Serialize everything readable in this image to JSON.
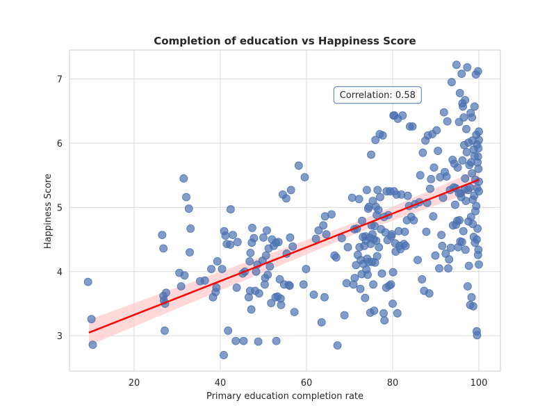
{
  "chart_data": {
    "type": "scatter",
    "title": "Completion of education vs Happiness Score",
    "xlabel": "Primary education completion rate",
    "ylabel": "Happiness Score",
    "xlim": [
      5,
      105
    ],
    "ylim": [
      2.45,
      7.45
    ],
    "xticks": [
      20,
      40,
      60,
      80,
      100
    ],
    "yticks": [
      3,
      4,
      5,
      6,
      7
    ],
    "grid": true,
    "annotation": {
      "text": "Correlation: 0.58",
      "x": 76.5,
      "y": 6.76
    },
    "regression": {
      "x": [
        9.5,
        100
      ],
      "y": [
        3.05,
        5.43
      ],
      "ci_halfwidth": [
        0.2,
        0.09,
        0.16
      ],
      "color": "#ff0000",
      "band_color": "#ffcccc"
    },
    "point_color": "#4c72b0",
    "points": [
      [
        9.3,
        3.84
      ],
      [
        10.1,
        3.26
      ],
      [
        10.4,
        2.86
      ],
      [
        26.5,
        4.57
      ],
      [
        26.8,
        4.36
      ],
      [
        26.8,
        3.62
      ],
      [
        26.9,
        3.55
      ],
      [
        27.1,
        3.08
      ],
      [
        27.2,
        3.5
      ],
      [
        27.4,
        3.67
      ],
      [
        30.5,
        3.98
      ],
      [
        30.9,
        3.77
      ],
      [
        31.5,
        5.45
      ],
      [
        31.7,
        3.94
      ],
      [
        32.1,
        5.16
      ],
      [
        32.7,
        4.98
      ],
      [
        32.9,
        4.3
      ],
      [
        33.1,
        4.67
      ],
      [
        35.3,
        3.85
      ],
      [
        36.4,
        3.86
      ],
      [
        37.9,
        4.04
      ],
      [
        38.3,
        3.6
      ],
      [
        38.9,
        3.68
      ],
      [
        39.1,
        3.75
      ],
      [
        39.3,
        4.16
      ],
      [
        40.4,
        4.04
      ],
      [
        40.8,
        2.7
      ],
      [
        40.9,
        4.63
      ],
      [
        41.2,
        4.56
      ],
      [
        41.5,
        4.43
      ],
      [
        41.8,
        3.08
      ],
      [
        42.3,
        4.42
      ],
      [
        42.4,
        4.97
      ],
      [
        42.9,
        4.57
      ],
      [
        43.6,
        2.92
      ],
      [
        43.8,
        3.75
      ],
      [
        44.0,
        4.46
      ],
      [
        45.2,
        3.97
      ],
      [
        45.4,
        2.92
      ],
      [
        45.7,
        4.0
      ],
      [
        46.6,
        3.6
      ],
      [
        46.8,
        4.16
      ],
      [
        46.9,
        3.7
      ],
      [
        47.0,
        4.29
      ],
      [
        47.2,
        3.41
      ],
      [
        47.3,
        4.45
      ],
      [
        47.4,
        4.68
      ],
      [
        47.8,
        4.52
      ],
      [
        48.1,
        3.7
      ],
      [
        48.3,
        4.0
      ],
      [
        48.6,
        4.11
      ],
      [
        48.8,
        2.91
      ],
      [
        49.0,
        3.66
      ],
      [
        49.8,
        4.17
      ],
      [
        50.0,
        4.53
      ],
      [
        50.3,
        3.8
      ],
      [
        50.4,
        3.9
      ],
      [
        50.6,
        4.25
      ],
      [
        50.8,
        4.64
      ],
      [
        51.0,
        3.95
      ],
      [
        51.2,
        4.36
      ],
      [
        51.5,
        4.08
      ],
      [
        51.8,
        3.51
      ],
      [
        52.0,
        4.5
      ],
      [
        52.4,
        4.4
      ],
      [
        52.8,
        3.6
      ],
      [
        52.9,
        4.45
      ],
      [
        53.0,
        2.92
      ],
      [
        53.3,
        3.61
      ],
      [
        53.5,
        4.46
      ],
      [
        53.8,
        3.88
      ],
      [
        54.0,
        3.58
      ],
      [
        54.1,
        3.48
      ],
      [
        54.5,
        5.2
      ],
      [
        54.8,
        3.8
      ],
      [
        55.3,
        5.14
      ],
      [
        55.4,
        4.28
      ],
      [
        55.9,
        3.79
      ],
      [
        56.1,
        3.78
      ],
      [
        56.2,
        4.53
      ],
      [
        56.4,
        5.27
      ],
      [
        56.8,
        4.39
      ],
      [
        57.2,
        3.37
      ],
      [
        58.2,
        5.65
      ],
      [
        59.3,
        3.8
      ],
      [
        59.6,
        5.47
      ],
      [
        59.9,
        4.04
      ],
      [
        61.7,
        3.64
      ],
      [
        62.2,
        4.51
      ],
      [
        62.8,
        4.64
      ],
      [
        63.5,
        3.21
      ],
      [
        63.9,
        4.72
      ],
      [
        64.2,
        3.6
      ],
      [
        64.3,
        4.86
      ],
      [
        64.6,
        4.58
      ],
      [
        65.8,
        4.89
      ],
      [
        66.5,
        4.25
      ],
      [
        66.9,
        4.22
      ],
      [
        67.2,
        2.85
      ],
      [
        68.2,
        4.52
      ],
      [
        68.8,
        3.32
      ],
      [
        69.3,
        3.82
      ],
      [
        69.6,
        4.38
      ],
      [
        70.6,
        5.15
      ],
      [
        70.9,
        3.8
      ],
      [
        71.1,
        4.66
      ],
      [
        71.2,
        3.9
      ],
      [
        71.5,
        4.1
      ],
      [
        71.7,
        4.67
      ],
      [
        71.9,
        4.26
      ],
      [
        72.2,
        5.13
      ],
      [
        72.3,
        4.38
      ],
      [
        72.5,
        3.73
      ],
      [
        72.6,
        4.18
      ],
      [
        72.8,
        3.96
      ],
      [
        72.9,
        4.79
      ],
      [
        73.1,
        4.54
      ],
      [
        73.2,
        4.12
      ],
      [
        73.4,
        4.4
      ],
      [
        73.6,
        3.59
      ],
      [
        73.7,
        4.55
      ],
      [
        73.8,
        4.48
      ],
      [
        73.9,
        4.03
      ],
      [
        74.0,
        5.27
      ],
      [
        74.1,
        4.2
      ],
      [
        74.2,
        3.95
      ],
      [
        74.3,
        4.98
      ],
      [
        74.4,
        4.15
      ],
      [
        74.5,
        5.01
      ],
      [
        74.7,
        4.53
      ],
      [
        74.8,
        3.36
      ],
      [
        74.9,
        4.43
      ],
      [
        75.0,
        5.82
      ],
      [
        75.1,
        4.72
      ],
      [
        75.2,
        4.15
      ],
      [
        75.3,
        4.58
      ],
      [
        75.4,
        5.1
      ],
      [
        75.5,
        3.8
      ],
      [
        75.6,
        4.5
      ],
      [
        75.7,
        3.39
      ],
      [
        75.8,
        4.71
      ],
      [
        75.9,
        4.14
      ],
      [
        76.0,
        6.05
      ],
      [
        76.1,
        5.01
      ],
      [
        76.2,
        4.48
      ],
      [
        76.3,
        4.88
      ],
      [
        76.4,
        4.24
      ],
      [
        76.5,
        5.27
      ],
      [
        76.7,
        4.96
      ],
      [
        76.8,
        4.38
      ],
      [
        77.0,
        6.14
      ],
      [
        77.1,
        5.16
      ],
      [
        77.3,
        4.66
      ],
      [
        77.5,
        3.97
      ],
      [
        77.7,
        6.12
      ],
      [
        77.9,
        3.35
      ],
      [
        78.0,
        4.85
      ],
      [
        78.1,
        3.24
      ],
      [
        78.3,
        4.61
      ],
      [
        78.5,
        3.75
      ],
      [
        78.6,
        5.25
      ],
      [
        78.8,
        4.49
      ],
      [
        79.0,
        4.88
      ],
      [
        79.2,
        3.78
      ],
      [
        79.4,
        5.25
      ],
      [
        79.6,
        3.8
      ],
      [
        79.7,
        4.55
      ],
      [
        79.8,
        4.58
      ],
      [
        80.0,
        3.5
      ],
      [
        80.1,
        3.99
      ],
      [
        80.2,
        6.43
      ],
      [
        80.3,
        5.25
      ],
      [
        80.4,
        6.43
      ],
      [
        80.6,
        4.44
      ],
      [
        80.7,
        4.31
      ],
      [
        80.9,
        5.2
      ],
      [
        81.1,
        3.35
      ],
      [
        81.2,
        6.38
      ],
      [
        81.4,
        4.63
      ],
      [
        81.6,
        4.4
      ],
      [
        81.8,
        4.35
      ],
      [
        82.0,
        5.2
      ],
      [
        82.3,
        6.43
      ],
      [
        82.6,
        4.43
      ],
      [
        82.8,
        4.62
      ],
      [
        83.0,
        4.4
      ],
      [
        83.3,
        4.8
      ],
      [
        83.5,
        5.18
      ],
      [
        83.8,
        5.02
      ],
      [
        84.0,
        6.26
      ],
      [
        84.3,
        4.85
      ],
      [
        84.6,
        6.26
      ],
      [
        84.9,
        4.8
      ],
      [
        85.2,
        5.05
      ],
      [
        85.8,
        4.18
      ],
      [
        86.2,
        5.08
      ],
      [
        86.4,
        5.5
      ],
      [
        86.8,
        3.88
      ],
      [
        87.0,
        5.85
      ],
      [
        87.3,
        3.7
      ],
      [
        87.6,
        6.04
      ],
      [
        87.8,
        4.62
      ],
      [
        88.0,
        5.07
      ],
      [
        88.2,
        6.12
      ],
      [
        88.5,
        3.66
      ],
      [
        88.7,
        5.29
      ],
      [
        88.9,
        5.44
      ],
      [
        89.2,
        6.14
      ],
      [
        89.4,
        4.86
      ],
      [
        89.6,
        5.62
      ],
      [
        89.9,
        4.25
      ],
      [
        90.2,
        6.2
      ],
      [
        90.5,
        5.88
      ],
      [
        90.8,
        4.05
      ],
      [
        91.0,
        5.47
      ],
      [
        91.3,
        4.57
      ],
      [
        91.5,
        4.4
      ],
      [
        91.7,
        5.15
      ],
      [
        91.9,
        6.48
      ],
      [
        92.1,
        5.55
      ],
      [
        92.3,
        4.28
      ],
      [
        92.5,
        5.48
      ],
      [
        92.7,
        6.34
      ],
      [
        92.9,
        4.05
      ],
      [
        93.1,
        4.19
      ],
      [
        93.3,
        5.27
      ],
      [
        93.5,
        4.37
      ],
      [
        93.7,
        6.95
      ],
      [
        93.9,
        5.74
      ],
      [
        94.0,
        4.72
      ],
      [
        94.2,
        5.31
      ],
      [
        94.3,
        5.68
      ],
      [
        94.5,
        5.04
      ],
      [
        94.7,
        4.73
      ],
      [
        94.8,
        7.22
      ],
      [
        95.0,
        4.79
      ],
      [
        95.1,
        5.62
      ],
      [
        95.2,
        4.38
      ],
      [
        95.4,
        6.33
      ],
      [
        95.5,
        4.8
      ],
      [
        95.6,
        6.78
      ],
      [
        95.7,
        4.47
      ],
      [
        95.8,
        5.22
      ],
      [
        95.9,
        5.16
      ],
      [
        96.0,
        7.08
      ],
      [
        96.1,
        4.46
      ],
      [
        96.2,
        5.73
      ],
      [
        96.3,
        6.57
      ],
      [
        96.4,
        4.63
      ],
      [
        96.5,
        6.4
      ],
      [
        96.6,
        5.97
      ],
      [
        96.7,
        5.28
      ],
      [
        96.8,
        6.67
      ],
      [
        96.9,
        4.34
      ],
      [
        97.0,
        5.1
      ],
      [
        97.1,
        6.22
      ],
      [
        97.2,
        5.86
      ],
      [
        97.3,
        7.18
      ],
      [
        97.4,
        3.77
      ],
      [
        97.5,
        5.27
      ],
      [
        97.6,
        6.01
      ],
      [
        97.7,
        4.09
      ],
      [
        97.8,
        5.66
      ],
      [
        97.9,
        5.31
      ],
      [
        98.0,
        3.48
      ],
      [
        98.1,
        6.47
      ],
      [
        98.2,
        4.85
      ],
      [
        98.3,
        3.6
      ],
      [
        98.4,
        5.53
      ],
      [
        98.5,
        6.04
      ],
      [
        98.6,
        4.74
      ],
      [
        98.7,
        3.46
      ],
      [
        98.8,
        5.9
      ],
      [
        98.9,
        5.18
      ],
      [
        99.0,
        6.57
      ],
      [
        99.1,
        4.45
      ],
      [
        99.2,
        5.43
      ],
      [
        99.3,
        7.07
      ],
      [
        99.4,
        6.13
      ],
      [
        99.5,
        3.07
      ],
      [
        99.6,
        3.01
      ],
      [
        99.7,
        4.67
      ],
      [
        99.8,
        5.79
      ],
      [
        99.9,
        4.34
      ],
      [
        100.0,
        4.11
      ],
      [
        100.0,
        5.25
      ],
      [
        99.6,
        5.98
      ],
      [
        99.4,
        5.02
      ],
      [
        99.2,
        4.94
      ],
      [
        98.6,
        5.12
      ],
      [
        98.8,
        4.54
      ],
      [
        99.0,
        5.8
      ],
      [
        99.6,
        5.3
      ],
      [
        100.0,
        6.05
      ],
      [
        99.8,
        4.26
      ],
      [
        98.4,
        6.4
      ],
      [
        98.2,
        5.7
      ],
      [
        97.6,
        4.78
      ],
      [
        96.8,
        5.45
      ],
      [
        95.4,
        5.22
      ],
      [
        94.6,
        5.3
      ],
      [
        96.2,
        6.62
      ],
      [
        99.8,
        7.12
      ],
      [
        99.9,
        5.6
      ],
      [
        100.0,
        5.4
      ],
      [
        99.7,
        5.7
      ],
      [
        99.9,
        5.92
      ],
      [
        100.0,
        6.18
      ],
      [
        99.5,
        4.5
      ]
    ]
  }
}
